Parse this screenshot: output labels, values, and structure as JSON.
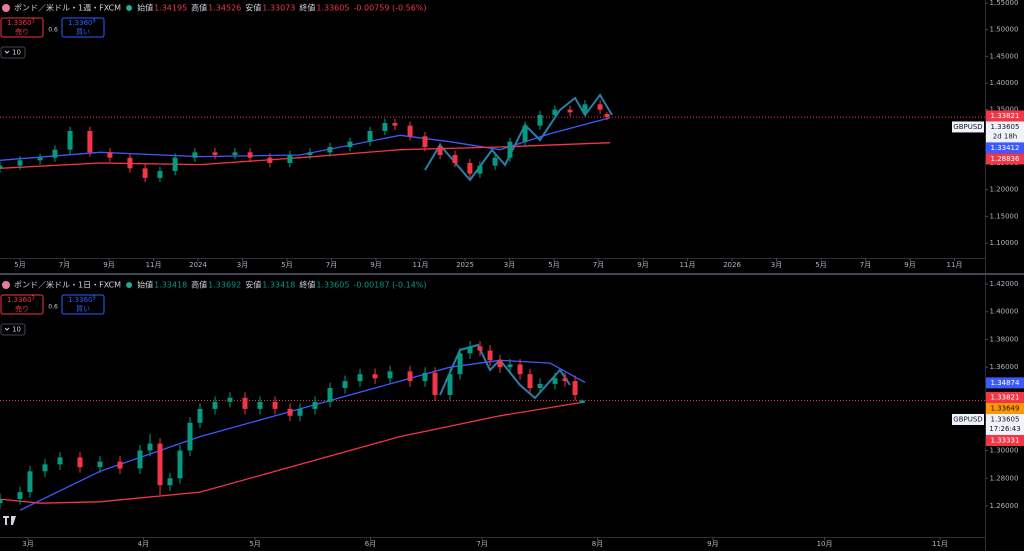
{
  "chart_data": [
    {
      "type": "candlestick",
      "header": {
        "title": "ポンド／米ドル・1週・FXCM",
        "ohlc": [
          {
            "label": "始値",
            "value": 1.34195
          },
          {
            "label": "高値",
            "value": 1.34526
          },
          {
            "label": "安値",
            "value": 1.33073
          },
          {
            "label": "終値",
            "value": 1.33605
          }
        ],
        "change": "-0.00759 (-0.56%)",
        "color": "#f23645",
        "sell": {
          "price": "1.3360",
          "sup": "3",
          "label": "売り"
        },
        "spread": "0.6",
        "buy": {
          "price": "1.3360",
          "sup": "9",
          "label": "買い"
        },
        "indicator": "10"
      },
      "up_color": "#089981",
      "down_color": "#f23645",
      "x": [
        3.1,
        4.0,
        4.9,
        5.57,
        6.25,
        7.14,
        8.04,
        8.94,
        9.62,
        10.29,
        10.97,
        11.86,
        12.76,
        13.66,
        14.34,
        15.23,
        16.13,
        17.03,
        17.93,
        18.83,
        19.73,
        20.4,
        20.85,
        21.53,
        22.2,
        22.88,
        23.55,
        24.22,
        24.67,
        25.35,
        26.02,
        26.7,
        27.37,
        28.04,
        28.72,
        29.39,
        30.07,
        30.38
      ],
      "open": [
        1.24,
        1.245,
        1.255,
        1.26,
        1.275,
        1.31,
        1.27,
        1.26,
        1.24,
        1.222,
        1.235,
        1.26,
        1.27,
        1.265,
        1.27,
        1.26,
        1.25,
        1.265,
        1.27,
        1.28,
        1.29,
        1.31,
        1.325,
        1.32,
        1.3,
        1.28,
        1.265,
        1.25,
        1.23,
        1.245,
        1.26,
        1.29,
        1.32,
        1.34,
        1.35,
        1.345,
        1.36,
        1.34195
      ],
      "high": [
        1.253,
        1.263,
        1.268,
        1.283,
        1.318,
        1.318,
        1.278,
        1.268,
        1.248,
        1.243,
        1.268,
        1.278,
        1.278,
        1.278,
        1.278,
        1.268,
        1.273,
        1.278,
        1.288,
        1.298,
        1.318,
        1.333,
        1.333,
        1.328,
        1.308,
        1.288,
        1.273,
        1.258,
        1.253,
        1.268,
        1.298,
        1.328,
        1.348,
        1.358,
        1.358,
        1.368,
        1.368,
        1.34526
      ],
      "low": [
        1.232,
        1.237,
        1.247,
        1.252,
        1.267,
        1.262,
        1.252,
        1.232,
        1.214,
        1.214,
        1.227,
        1.252,
        1.257,
        1.257,
        1.252,
        1.242,
        1.242,
        1.257,
        1.262,
        1.272,
        1.282,
        1.302,
        1.312,
        1.292,
        1.272,
        1.257,
        1.242,
        1.222,
        1.222,
        1.237,
        1.252,
        1.282,
        1.312,
        1.332,
        1.337,
        1.337,
        1.342,
        1.33073
      ],
      "close": [
        1.245,
        1.255,
        1.26,
        1.275,
        1.31,
        1.27,
        1.26,
        1.24,
        1.222,
        1.235,
        1.26,
        1.27,
        1.265,
        1.27,
        1.26,
        1.25,
        1.265,
        1.27,
        1.28,
        1.29,
        1.31,
        1.325,
        1.32,
        1.3,
        1.28,
        1.265,
        1.25,
        1.23,
        1.245,
        1.26,
        1.29,
        1.32,
        1.34,
        1.35,
        1.345,
        1.36,
        1.35,
        1.33605
      ],
      "series": [
        {
          "color": "#3d5afe",
          "x": [
            3.1,
            7.59,
            12.09,
            16.58,
            21.08,
            23.32,
            25.57,
            27.82,
            30.52
          ],
          "values": [
            1.255,
            1.27,
            1.262,
            1.265,
            1.302,
            1.29,
            1.275,
            1.305,
            1.335
          ]
        },
        {
          "color": "#f23645",
          "x": [
            3.1,
            7.59,
            12.09,
            16.58,
            21.08,
            25.57,
            30.52
          ],
          "values": [
            1.24,
            1.25,
            1.247,
            1.26,
            1.275,
            1.28,
            1.288
          ]
        }
      ],
      "xlim": [
        3.1,
        47.37
      ],
      "xticks": [
        {
          "value": 4,
          "label": "5月"
        },
        {
          "value": 6,
          "label": "7月"
        },
        {
          "value": 8,
          "label": "9月"
        },
        {
          "value": 10,
          "label": "11月"
        },
        {
          "value": 12,
          "label": "2024"
        },
        {
          "value": 14,
          "label": "3月"
        },
        {
          "value": 16,
          "label": "5月"
        },
        {
          "value": 18,
          "label": "7月"
        },
        {
          "value": 20,
          "label": "9月"
        },
        {
          "value": 22,
          "label": "11月"
        },
        {
          "value": 24,
          "label": "2025"
        },
        {
          "value": 26,
          "label": "3月"
        },
        {
          "value": 28,
          "label": "5月"
        },
        {
          "value": 30,
          "label": "7月"
        },
        {
          "value": 32,
          "label": "9月"
        },
        {
          "value": 34,
          "label": "11月"
        },
        {
          "value": 36,
          "label": "2026"
        },
        {
          "value": 38,
          "label": "3月"
        },
        {
          "value": 40,
          "label": "5月"
        },
        {
          "value": 42,
          "label": "7月"
        },
        {
          "value": 44,
          "label": "9月"
        },
        {
          "value": 46,
          "label": "11月"
        }
      ],
      "ylim": [
        1.0719,
        1.5556
      ],
      "yticks": [
        {
          "value": 1.55,
          "label": "1.55000"
        },
        {
          "value": 1.5,
          "label": "1.50000"
        },
        {
          "value": 1.45,
          "label": "1.45000"
        },
        {
          "value": 1.4,
          "label": "1.40000"
        },
        {
          "value": 1.35,
          "label": "1.35000"
        },
        {
          "value": 1.3,
          "label": "1.30000"
        },
        {
          "value": 1.25,
          "label": "1.25000"
        },
        {
          "value": 1.2,
          "label": "1.20000"
        },
        {
          "value": 1.15,
          "label": "1.15000"
        },
        {
          "value": 1.1,
          "label": "1.10000"
        }
      ],
      "price_labels": [
        {
          "value": 1.33821,
          "color": "#f23645"
        },
        {
          "value": 1.33412,
          "color": "#3d5afe"
        },
        {
          "value": 1.28836,
          "color": "#f23645"
        }
      ],
      "current": {
        "value": 1.33605,
        "countdown": "2d 18h",
        "symbol": "GBPUSD",
        "color": "#f23645"
      }
    },
    {
      "type": "candlestick",
      "header": {
        "title": "ポンド／米ドル・1日・FXCM",
        "ohlc": [
          {
            "label": "始値",
            "value": 1.33418
          },
          {
            "label": "高値",
            "value": 1.33692
          },
          {
            "label": "安値",
            "value": 1.33418
          },
          {
            "label": "終値",
            "value": 1.33605
          }
        ],
        "change": "-0.00187 (-0.14%)",
        "color": "#089981",
        "sell": {
          "price": "1.3360",
          "sup": "3",
          "label": "売り"
        },
        "spread": "0.6",
        "buy": {
          "price": "1.3360",
          "sup": "9",
          "label": "買い"
        },
        "indicator": "10"
      },
      "up_color": "#089981",
      "down_color": "#f23645",
      "x": [
        -7.52,
        -2.15,
        0.54,
        4.57,
        8.6,
        13.97,
        19.35,
        24.72,
        30.09,
        32.78,
        35.47,
        38.15,
        40.84,
        43.53,
        46.21,
        50.24,
        54.27,
        58.3,
        62.33,
        66.37,
        70.4,
        73.08,
        77.11,
        81.14,
        85.17,
        89.2,
        93.23,
        97.26,
        102.64,
        106.67,
        109.35,
        113.38,
        116.07,
        118.76,
        121.44,
        124.13,
        126.82,
        129.5,
        132.19,
        134.87,
        137.56,
        141.59,
        144.28,
        146.97,
        148.85
      ],
      "open": [
        1.262,
        1.265,
        1.27,
        1.285,
        1.29,
        1.295,
        1.288,
        1.292,
        1.287,
        1.3,
        1.305,
        1.275,
        1.28,
        1.3,
        1.32,
        1.33,
        1.335,
        1.338,
        1.33,
        1.335,
        1.33,
        1.325,
        1.33,
        1.335,
        1.345,
        1.35,
        1.355,
        1.352,
        1.357,
        1.35,
        1.356,
        1.34,
        1.355,
        1.37,
        1.375,
        1.372,
        1.365,
        1.36,
        1.362,
        1.355,
        1.345,
        1.348,
        1.352,
        1.35,
        1.33418
      ],
      "high": [
        1.269,
        1.274,
        1.289,
        1.294,
        1.299,
        1.299,
        1.296,
        1.296,
        1.304,
        1.312,
        1.309,
        1.284,
        1.304,
        1.324,
        1.334,
        1.339,
        1.342,
        1.342,
        1.339,
        1.339,
        1.334,
        1.334,
        1.339,
        1.349,
        1.354,
        1.359,
        1.359,
        1.361,
        1.361,
        1.36,
        1.36,
        1.359,
        1.374,
        1.379,
        1.379,
        1.376,
        1.369,
        1.366,
        1.366,
        1.359,
        1.352,
        1.356,
        1.356,
        1.354,
        1.33692
      ],
      "low": [
        1.258,
        1.261,
        1.266,
        1.281,
        1.286,
        1.284,
        1.284,
        1.283,
        1.283,
        1.296,
        1.268,
        1.271,
        1.276,
        1.296,
        1.316,
        1.326,
        1.331,
        1.326,
        1.326,
        1.326,
        1.321,
        1.321,
        1.326,
        1.331,
        1.341,
        1.346,
        1.348,
        1.348,
        1.346,
        1.346,
        1.336,
        1.336,
        1.351,
        1.366,
        1.368,
        1.361,
        1.356,
        1.356,
        1.351,
        1.341,
        1.341,
        1.344,
        1.346,
        1.336,
        1.33418
      ],
      "close": [
        1.265,
        1.27,
        1.285,
        1.29,
        1.295,
        1.288,
        1.292,
        1.287,
        1.3,
        1.305,
        1.275,
        1.28,
        1.3,
        1.32,
        1.33,
        1.335,
        1.338,
        1.33,
        1.335,
        1.33,
        1.325,
        1.33,
        1.335,
        1.345,
        1.35,
        1.355,
        1.352,
        1.357,
        1.35,
        1.356,
        1.34,
        1.355,
        1.37,
        1.375,
        1.372,
        1.365,
        1.36,
        1.362,
        1.355,
        1.345,
        1.348,
        1.352,
        1.35,
        1.34,
        1.33605
      ],
      "series": [
        {
          "color": "#3d5afe",
          "x": [
            -2.15,
            19.35,
            46.21,
            73.08,
            99.95,
            113.38,
            126.82,
            140.25,
            149.65
          ],
          "values": [
            1.257,
            1.285,
            1.31,
            1.33,
            1.35,
            1.36,
            1.365,
            1.363,
            1.349
          ]
        },
        {
          "color": "#f23645",
          "x": [
            -7.52,
            3.23,
            19.35,
            46.21,
            73.08,
            99.95,
            126.82,
            149.65
          ],
          "values": [
            1.265,
            1.262,
            1.263,
            1.27,
            1.29,
            1.31,
            1.325,
            1.335
          ]
        }
      ],
      "xlim": [
        -7.52,
        257.1
      ],
      "xticks": [
        {
          "value": 0,
          "label": "3月"
        },
        {
          "value": 31,
          "label": "4月"
        },
        {
          "value": 61,
          "label": "5月"
        },
        {
          "value": 92,
          "label": "6月"
        },
        {
          "value": 122,
          "label": "7月"
        },
        {
          "value": 153,
          "label": "8月"
        },
        {
          "value": 184,
          "label": "9月"
        },
        {
          "value": 214,
          "label": "10月"
        },
        {
          "value": 245,
          "label": "11月"
        }
      ],
      "ylim": [
        1.23766,
        1.42504
      ],
      "yticks": [
        {
          "value": 1.42,
          "label": "1.42000"
        },
        {
          "value": 1.4,
          "label": "1.40000"
        },
        {
          "value": 1.38,
          "label": "1.38000"
        },
        {
          "value": 1.36,
          "label": "1.36000"
        },
        {
          "value": 1.34,
          "label": "1.34000"
        },
        {
          "value": 1.32,
          "label": "1.32000"
        },
        {
          "value": 1.3,
          "label": "1.30000"
        },
        {
          "value": 1.28,
          "label": "1.28000"
        },
        {
          "value": 1.26,
          "label": "1.26000"
        }
      ],
      "price_labels": [
        {
          "value": 1.34874,
          "color": "#3d5afe"
        },
        {
          "value": 1.33821,
          "color": "#f23645"
        },
        {
          "value": 1.33649,
          "color": "#ff9800"
        },
        {
          "value": 1.33331,
          "color": "#f23645"
        }
      ],
      "current": {
        "value": 1.33605,
        "countdown": "17:26:43",
        "symbol": "GBPUSD",
        "color": "#f23645"
      }
    }
  ]
}
